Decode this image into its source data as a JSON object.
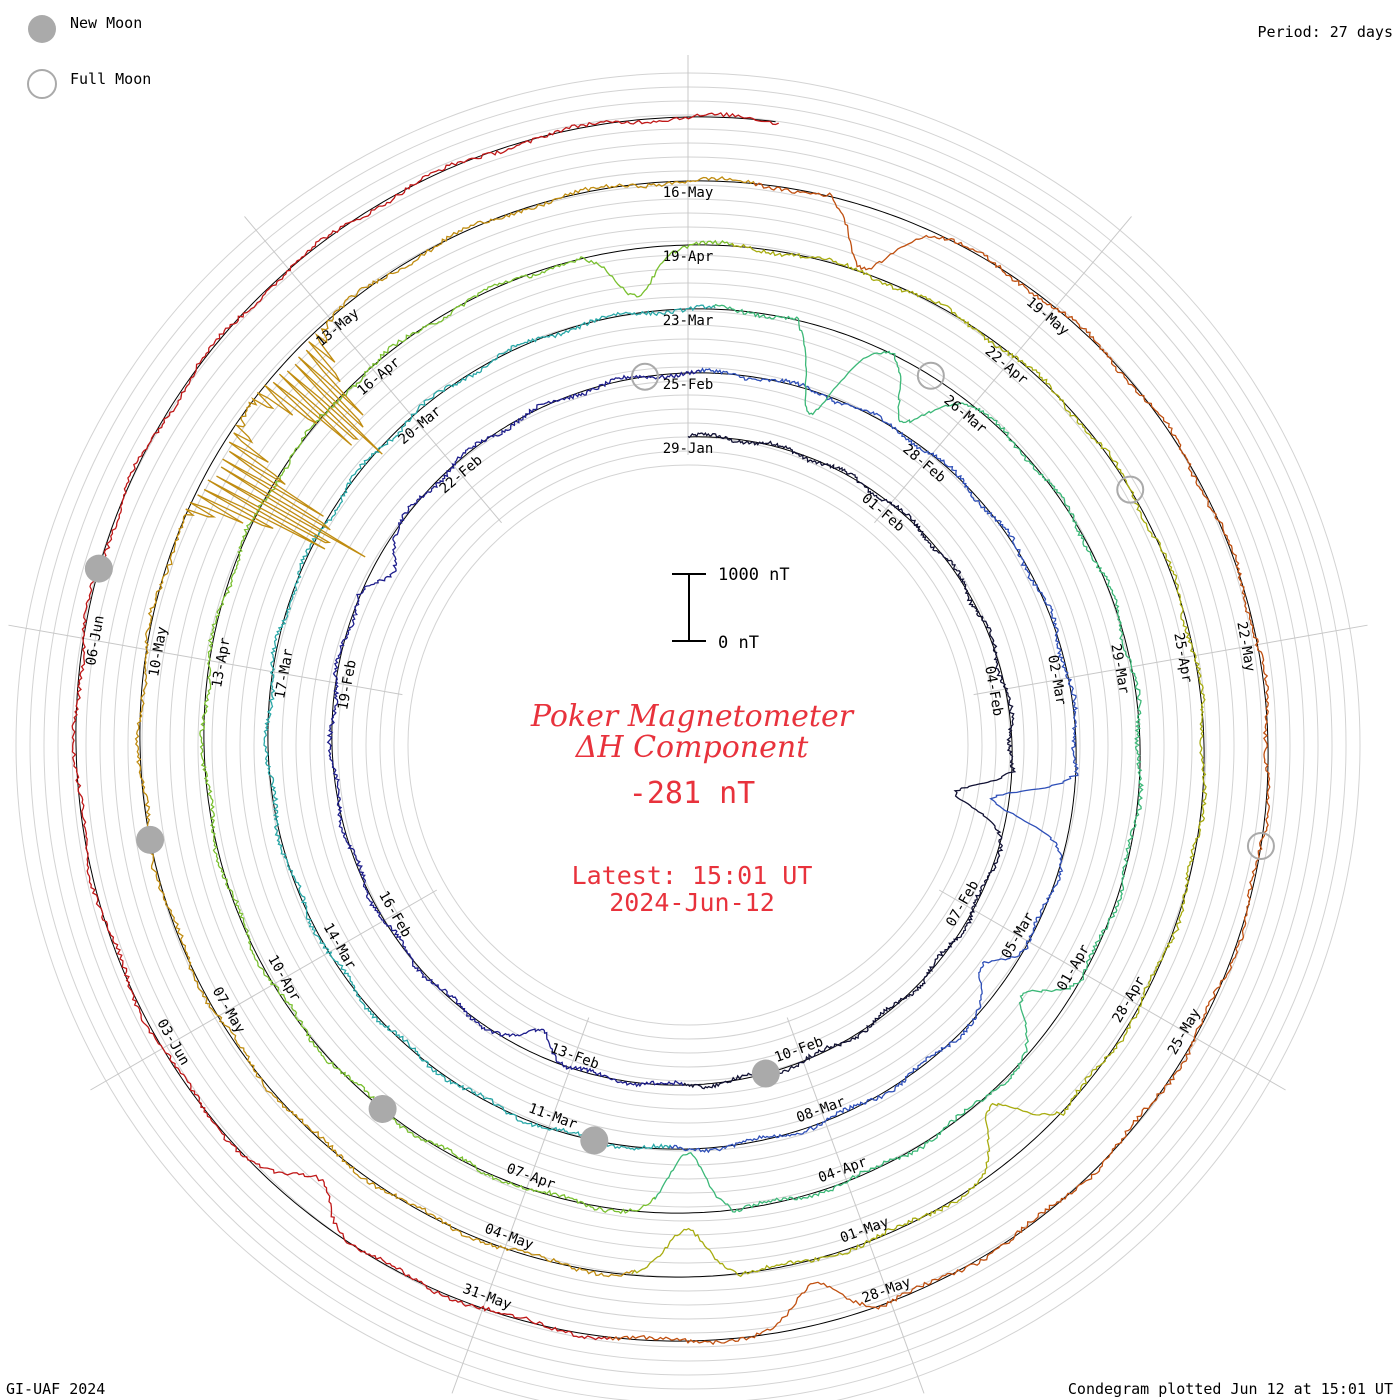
{
  "legend": {
    "new_moon_label": "New Moon",
    "full_moon_label": "Full Moon",
    "moon_color": "#aaaaaa"
  },
  "period_label": "Period: 27 days",
  "footer": {
    "left": "GI-UAF 2024",
    "right": "Condegram plotted Jun 12 at 15:01 UT"
  },
  "center": {
    "title_line1": "Poker Magnetometer",
    "title_line2": "ΔH Component",
    "current_value": "-281 nT",
    "latest_line1": "Latest: 15:01 UT",
    "latest_line2": "2024-Jun-12",
    "text_color": "#e8323c"
  },
  "scale_bar": {
    "top_label": "1000 nT",
    "bottom_label": "0 nT"
  },
  "chart_data": {
    "type": "line",
    "plot_style": "spiral condegram",
    "period_days": 27,
    "start_date": "2024-01-29",
    "end_date": "2024-06-12",
    "y_unit": "nT",
    "date_labels": [
      "29-Jan",
      "01-Feb",
      "04-Feb",
      "07-Feb",
      "10-Feb",
      "13-Feb",
      "16-Feb",
      "19-Feb",
      "22-Feb",
      "25-Feb",
      "28-Feb",
      "02-Mar",
      "05-Mar",
      "08-Mar",
      "11-Mar",
      "14-Mar",
      "17-Mar",
      "20-Mar",
      "23-Mar",
      "26-Mar",
      "29-Mar",
      "01-Apr",
      "04-Apr",
      "07-Apr",
      "10-Apr",
      "13-Apr",
      "16-Apr",
      "19-Apr",
      "22-Apr",
      "25-Apr",
      "28-Apr",
      "01-May",
      "04-May",
      "07-May",
      "10-May",
      "13-May",
      "16-May",
      "19-May",
      "22-May",
      "25-May",
      "28-May",
      "31-May",
      "03-Jun",
      "06-Jun"
    ],
    "new_moons": [
      "2024-02-10",
      "2024-03-10",
      "2024-04-08",
      "2024-05-08",
      "2024-06-06"
    ],
    "full_moons": [
      "2024-02-24",
      "2024-03-25",
      "2024-04-23",
      "2024-05-23"
    ],
    "events": [
      {
        "date": "2024-02-05",
        "min": -800
      },
      {
        "date": "2024-02-13",
        "min": -350
      },
      {
        "date": "2024-02-20",
        "min": -300
      },
      {
        "date": "2024-03-03",
        "min": -1200
      },
      {
        "date": "2024-03-05",
        "min": -400
      },
      {
        "date": "2024-03-24",
        "min": -1300
      },
      {
        "date": "2024-03-25",
        "min": -800
      },
      {
        "date": "2024-04-01",
        "min": -600
      },
      {
        "date": "2024-04-05",
        "min": -900
      },
      {
        "date": "2024-04-18",
        "min": -700
      },
      {
        "date": "2024-04-29",
        "min": -800
      },
      {
        "date": "2024-05-02",
        "min": -700
      },
      {
        "date": "2024-05-11",
        "min": -2700
      },
      {
        "date": "2024-05-12",
        "min": -2000
      },
      {
        "date": "2024-05-17",
        "min": -900
      },
      {
        "date": "2024-05-28",
        "min": -600
      },
      {
        "date": "2024-06-01",
        "min": -500
      }
    ],
    "series": [
      {
        "color": "#111133"
      },
      {
        "color": "#1e1e8c"
      },
      {
        "color": "#2e4fb8"
      },
      {
        "color": "#2aa8a8"
      },
      {
        "color": "#3cb878"
      },
      {
        "color": "#7ac030"
      },
      {
        "color": "#a8ac10"
      },
      {
        "color": "#c08c10"
      },
      {
        "color": "#c05010"
      },
      {
        "color": "#c01818"
      }
    ]
  }
}
